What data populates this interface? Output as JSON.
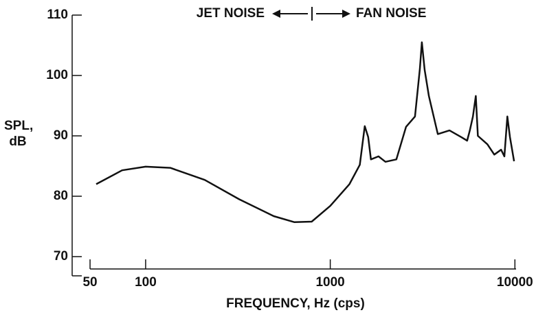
{
  "chart_data": {
    "type": "line",
    "annotations": [
      "JET NOISE",
      "FAN NOISE"
    ],
    "xlabel": "FREQUENCY, Hz (cps)",
    "ylabel": "SPL, dB",
    "xscale": "log",
    "xlim": [
      40,
      10500
    ],
    "xticks": [
      50,
      100,
      1000,
      10000
    ],
    "ylim": [
      70,
      110
    ],
    "yticks": [
      70,
      80,
      90,
      100,
      110
    ],
    "grid": false,
    "series": [
      {
        "color": "#111111",
        "x": [
          54,
          74.6,
          100,
          136,
          209,
          321,
          494,
          640,
          793,
          1000,
          1270,
          1445,
          1537,
          1604,
          1660,
          1824,
          1990,
          2280,
          2573,
          2877,
          3056,
          3134,
          3245,
          3420,
          3822,
          4424,
          5119,
          5513,
          5700,
          5925,
          6140,
          6300,
          7100,
          7730,
          8420,
          8770,
          9100,
          9400,
          9900
        ],
        "values": [
          82.0,
          84.3,
          84.9,
          84.7,
          82.7,
          79.5,
          76.7,
          75.7,
          75.8,
          78.4,
          82.0,
          85.2,
          91.6,
          89.8,
          86.1,
          86.6,
          85.7,
          86.1,
          91.5,
          93.2,
          101.1,
          105.5,
          100.9,
          96.6,
          90.3,
          90.9,
          89.8,
          89.2,
          90.9,
          93.2,
          96.6,
          90.0,
          88.6,
          86.9,
          87.7,
          86.6,
          93.2,
          89.8,
          85.8
        ]
      }
    ]
  }
}
